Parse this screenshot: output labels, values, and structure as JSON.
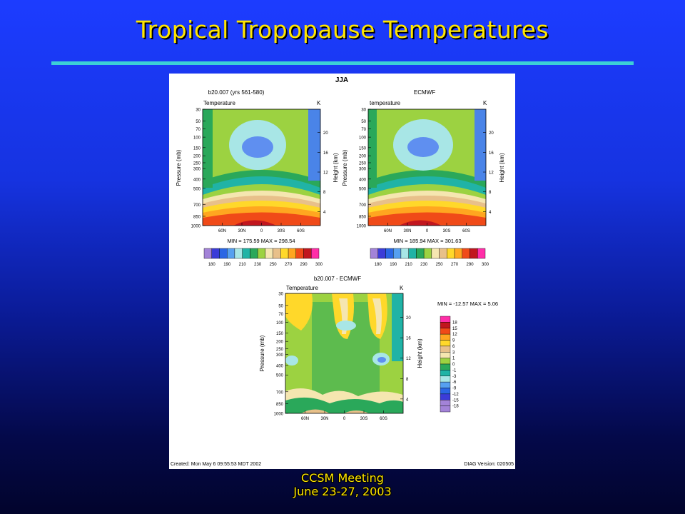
{
  "slide": {
    "title": "Tropical Tropopause Temperatures",
    "footer_line1": "CCSM Meeting",
    "footer_line2": "June 23-27, 2003",
    "title_color": "#ffe600",
    "rule_color": "#3ccfd6"
  },
  "figure": {
    "season": "JJA",
    "created": "Created: Mon May  6 09:55:53 MDT 2002",
    "version": "DIAG Version: 020505"
  },
  "chart_data": [
    {
      "type": "heatmap",
      "title": "b20.007 (yrs 561-580)",
      "field": "Temperature",
      "units": "K",
      "ylabel": "Pressure (mb)",
      "y2label": "Height (km)",
      "pressure_ticks": [
        "30",
        "50",
        "70",
        "100",
        "150",
        "200",
        "250",
        "300",
        "400",
        "500",
        "700",
        "850",
        "1000"
      ],
      "height_ticks": [
        "20",
        "16",
        "12",
        "8",
        "4"
      ],
      "lat_ticks": [
        "60N",
        "30N",
        "0",
        "30S",
        "60S"
      ],
      "min": 175.59,
      "max": 298.54,
      "min_max_label": "MIN = 175.59  MAX = 298.54",
      "colorbar_labels": [
        "180",
        "190",
        "210",
        "230",
        "250",
        "270",
        "290",
        "300"
      ]
    },
    {
      "type": "heatmap",
      "title": "ECMWF",
      "field": "temperature",
      "units": "K",
      "ylabel": "Pressure (mb)",
      "y2label": "Height (km)",
      "pressure_ticks": [
        "30",
        "50",
        "70",
        "100",
        "150",
        "200",
        "250",
        "300",
        "400",
        "500",
        "700",
        "850",
        "1000"
      ],
      "height_ticks": [
        "20",
        "16",
        "12",
        "8",
        "4"
      ],
      "lat_ticks": [
        "60N",
        "30N",
        "0",
        "30S",
        "60S"
      ],
      "min": 185.94,
      "max": 301.63,
      "min_max_label": "MIN = 185.94  MAX = 301.63",
      "colorbar_labels": [
        "180",
        "190",
        "210",
        "230",
        "250",
        "270",
        "290",
        "300"
      ]
    },
    {
      "type": "heatmap",
      "title": "b20.007 - ECMWF",
      "field": "Temperature",
      "units": "K",
      "ylabel": "Pressure (mb)",
      "y2label": "Height (km)",
      "pressure_ticks": [
        "30",
        "50",
        "70",
        "100",
        "150",
        "200",
        "250",
        "300",
        "400",
        "500",
        "700",
        "850",
        "1000"
      ],
      "height_ticks": [
        "20",
        "16",
        "12",
        "8",
        "4"
      ],
      "lat_ticks": [
        "60N",
        "30N",
        "0",
        "30S",
        "60S"
      ],
      "min": -12.57,
      "max": 5.06,
      "min_max_label": "MIN = -12.57  MAX =   5.06",
      "colorbar_labels": [
        "18",
        "15",
        "12",
        "9",
        "6",
        "3",
        "1",
        "0",
        "-1",
        "-3",
        "-6",
        "-9",
        "-12",
        "-15",
        "-18"
      ]
    }
  ]
}
